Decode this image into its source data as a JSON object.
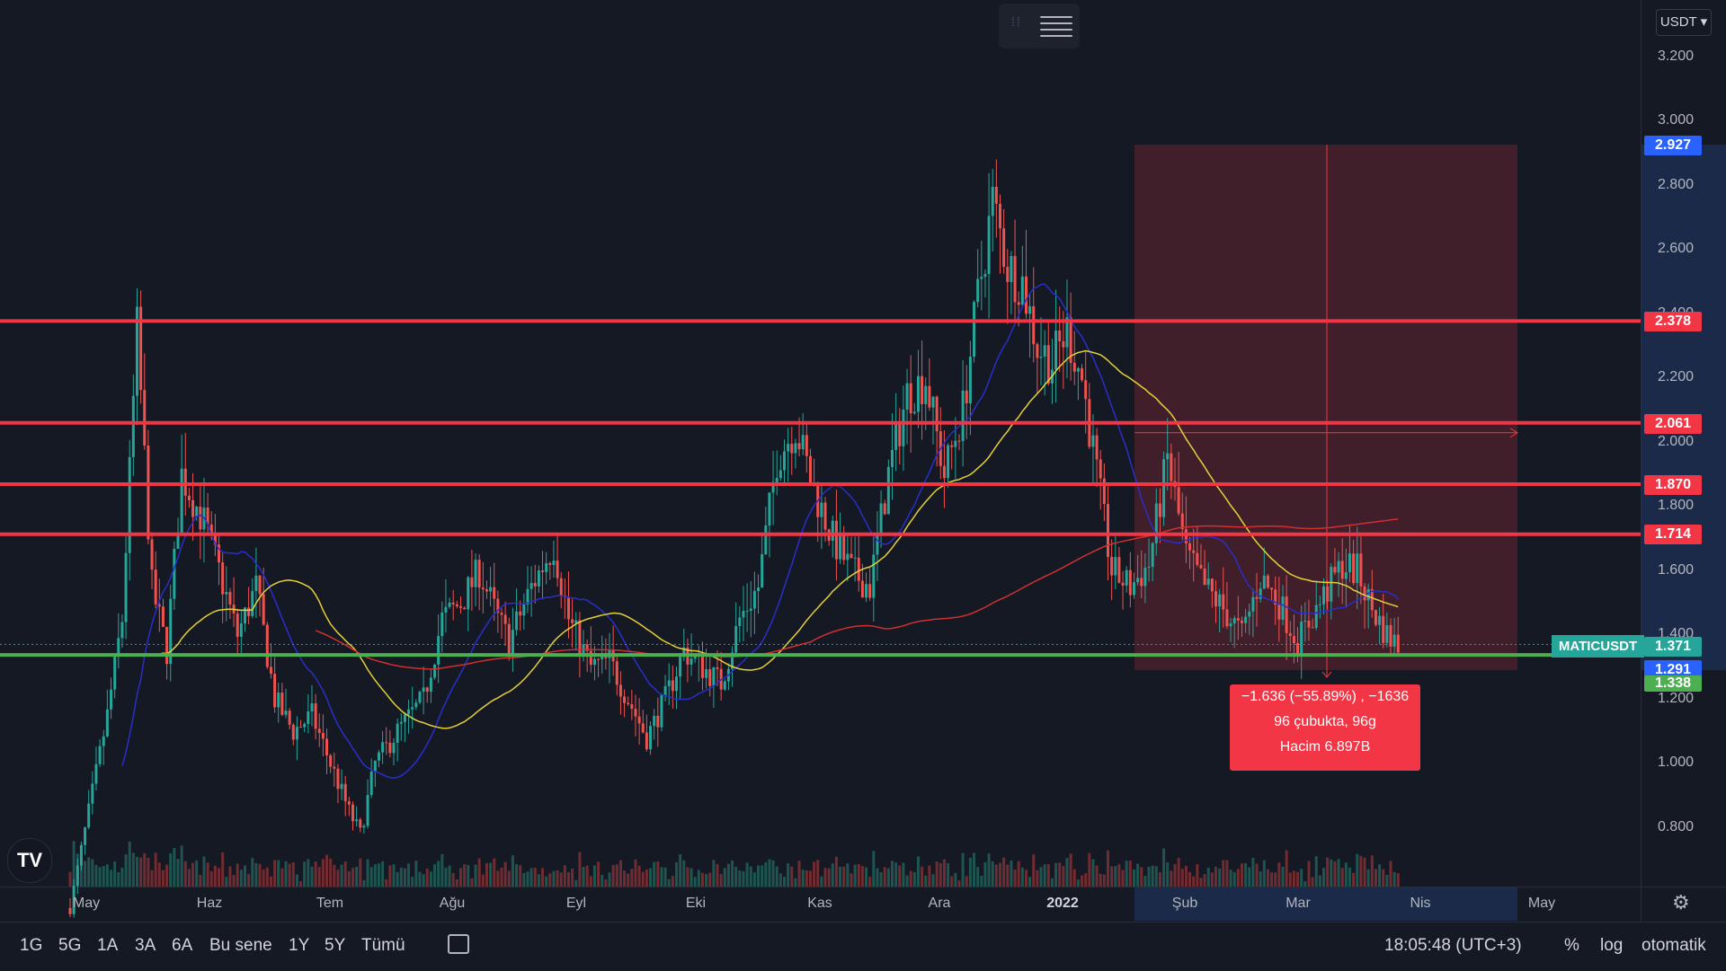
{
  "header": {
    "currency": "USDT"
  },
  "y_axis": {
    "labels": [
      "3.200",
      "3.000",
      "2.800",
      "2.600",
      "2.400",
      "2.200",
      "2.000",
      "1.800",
      "1.600",
      "1.400",
      "1.200",
      "1.000",
      "0.800"
    ]
  },
  "x_axis": {
    "labels": [
      "May",
      "Haz",
      "Tem",
      "Ağu",
      "Eyl",
      "Eki",
      "Kas",
      "Ara",
      "2022",
      "Şub",
      "Mar",
      "Nis",
      "May"
    ]
  },
  "symbol": "MATICUSDT",
  "price_tags": {
    "range_top": "2.927",
    "line1": "2.378",
    "line2": "2.061",
    "line3": "1.870",
    "line4": "1.714",
    "last": "1.371",
    "range_bottom": "1.291",
    "support": "1.338"
  },
  "measure": {
    "line1": "−1.636 (−55.89%) , −1636",
    "line2": "96 çubukta, 96g",
    "line3": "Hacim 6.897B"
  },
  "bottom": {
    "ranges": [
      "1G",
      "5G",
      "1A",
      "3A",
      "6A",
      "Bu sene",
      "1Y",
      "5Y",
      "Tümü"
    ],
    "clock": "18:05:48 (UTC+3)",
    "percent": "%",
    "log": "log",
    "auto": "otomatik"
  },
  "colors": {
    "up": "#26a69a",
    "down": "#ef5350",
    "resistance": "#f23645",
    "support": "#4caf50",
    "ma_blue": "#2a2ec9",
    "ma_yellow": "#e6d03a",
    "ma_red": "#d32f2f",
    "measure_fill": "#f23645"
  },
  "chart_data": {
    "type": "candlestick",
    "symbol": "MATICUSDT",
    "quote": "USDT",
    "x_range": [
      "2021-05",
      "2022-05"
    ],
    "ylim": [
      0.7,
      3.3
    ],
    "horizontal_levels": [
      {
        "value": 2.378,
        "color": "red"
      },
      {
        "value": 2.061,
        "color": "red"
      },
      {
        "value": 1.87,
        "color": "red"
      },
      {
        "value": 1.714,
        "color": "red"
      },
      {
        "value": 1.338,
        "color": "green"
      }
    ],
    "last_price": 1.371,
    "anchors": [
      {
        "d": 0,
        "p": 0.55
      },
      {
        "d": 5,
        "p": 0.85
      },
      {
        "d": 10,
        "p": 1.15
      },
      {
        "d": 14,
        "p": 1.45
      },
      {
        "d": 18,
        "p": 2.35
      },
      {
        "d": 22,
        "p": 1.55
      },
      {
        "d": 26,
        "p": 1.35
      },
      {
        "d": 30,
        "p": 1.9
      },
      {
        "d": 36,
        "p": 1.75
      },
      {
        "d": 40,
        "p": 1.6
      },
      {
        "d": 45,
        "p": 1.4
      },
      {
        "d": 50,
        "p": 1.55
      },
      {
        "d": 55,
        "p": 1.2
      },
      {
        "d": 60,
        "p": 1.1
      },
      {
        "d": 65,
        "p": 1.15
      },
      {
        "d": 70,
        "p": 1.0
      },
      {
        "d": 75,
        "p": 0.85
      },
      {
        "d": 78,
        "p": 0.78
      },
      {
        "d": 82,
        "p": 1.0
      },
      {
        "d": 88,
        "p": 1.1
      },
      {
        "d": 95,
        "p": 1.2
      },
      {
        "d": 100,
        "p": 1.45
      },
      {
        "d": 105,
        "p": 1.5
      },
      {
        "d": 110,
        "p": 1.6
      },
      {
        "d": 115,
        "p": 1.45
      },
      {
        "d": 118,
        "p": 1.38
      },
      {
        "d": 124,
        "p": 1.55
      },
      {
        "d": 130,
        "p": 1.68
      },
      {
        "d": 134,
        "p": 1.45
      },
      {
        "d": 140,
        "p": 1.3
      },
      {
        "d": 145,
        "p": 1.32
      },
      {
        "d": 150,
        "p": 1.2
      },
      {
        "d": 155,
        "p": 1.08
      },
      {
        "d": 160,
        "p": 1.2
      },
      {
        "d": 165,
        "p": 1.35
      },
      {
        "d": 170,
        "p": 1.3
      },
      {
        "d": 175,
        "p": 1.25
      },
      {
        "d": 180,
        "p": 1.45
      },
      {
        "d": 185,
        "p": 1.55
      },
      {
        "d": 190,
        "p": 1.95
      },
      {
        "d": 195,
        "p": 2.05
      },
      {
        "d": 200,
        "p": 1.85
      },
      {
        "d": 205,
        "p": 1.7
      },
      {
        "d": 210,
        "p": 1.6
      },
      {
        "d": 215,
        "p": 1.55
      },
      {
        "d": 220,
        "p": 1.9
      },
      {
        "d": 225,
        "p": 2.15
      },
      {
        "d": 230,
        "p": 2.2
      },
      {
        "d": 235,
        "p": 1.9
      },
      {
        "d": 240,
        "p": 2.1
      },
      {
        "d": 244,
        "p": 2.45
      },
      {
        "d": 248,
        "p": 2.75
      },
      {
        "d": 252,
        "p": 2.55
      },
      {
        "d": 256,
        "p": 2.5
      },
      {
        "d": 260,
        "p": 2.3
      },
      {
        "d": 264,
        "p": 2.25
      },
      {
        "d": 268,
        "p": 2.35
      },
      {
        "d": 272,
        "p": 2.2
      },
      {
        "d": 276,
        "p": 1.9
      },
      {
        "d": 280,
        "p": 1.6
      },
      {
        "d": 285,
        "p": 1.55
      },
      {
        "d": 290,
        "p": 1.62
      },
      {
        "d": 295,
        "p": 1.95
      },
      {
        "d": 300,
        "p": 1.65
      },
      {
        "d": 305,
        "p": 1.55
      },
      {
        "d": 310,
        "p": 1.48
      },
      {
        "d": 315,
        "p": 1.4
      },
      {
        "d": 320,
        "p": 1.58
      },
      {
        "d": 325,
        "p": 1.5
      },
      {
        "d": 330,
        "p": 1.38
      },
      {
        "d": 336,
        "p": 1.5
      },
      {
        "d": 342,
        "p": 1.62
      },
      {
        "d": 346,
        "p": 1.6
      },
      {
        "d": 350,
        "p": 1.48
      },
      {
        "d": 354,
        "p": 1.4
      },
      {
        "d": 357,
        "p": 1.37
      }
    ]
  }
}
